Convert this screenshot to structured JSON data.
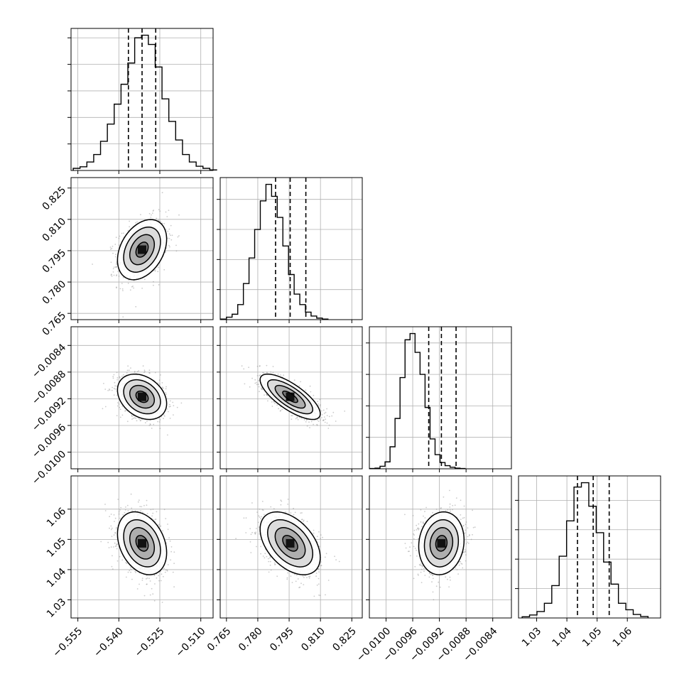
{
  "chart_data": {
    "type": "corner",
    "parameters": [
      {
        "index": 0,
        "axis_range": [
          -0.5575,
          -0.5055
        ],
        "ticks": [
          -0.555,
          -0.54,
          -0.525,
          -0.51
        ],
        "tick_labels": [
          "−0.555",
          "−0.540",
          "−0.525",
          "−0.510"
        ],
        "quantiles": [
          -0.5365,
          -0.5315,
          -0.5265
        ],
        "histogram": {
          "start": -0.5567,
          "bin_width": 0.0025,
          "counts": [
            8,
            14,
            32,
            60,
            110,
            175,
            250,
            325,
            405,
            500,
            510,
            475,
            390,
            270,
            185,
            115,
            60,
            32,
            16,
            8,
            2
          ]
        }
      },
      {
        "index": 1,
        "axis_range": [
          0.762,
          0.83
        ],
        "ticks": [
          0.765,
          0.78,
          0.795,
          0.81,
          0.825
        ],
        "tick_labels": [
          "0.765",
          "0.780",
          "0.795",
          "0.810",
          "0.825"
        ],
        "quantiles": [
          0.7885,
          0.7955,
          0.803
        ],
        "histogram": {
          "start": 0.7623,
          "bin_width": 0.0027,
          "counts": [
            2,
            8,
            18,
            50,
            120,
            205,
            300,
            395,
            450,
            410,
            340,
            245,
            150,
            85,
            50,
            25,
            12,
            5,
            2
          ]
        }
      },
      {
        "index": 2,
        "axis_range": [
          -0.01025,
          -0.00812
        ],
        "ticks": [
          -0.01,
          -0.0096,
          -0.0092,
          -0.0088,
          -0.0084
        ],
        "tick_labels": [
          "−0.0100",
          "−0.0096",
          "−0.0092",
          "−0.0088",
          "−0.0084"
        ],
        "quantiles": [
          -0.00936,
          -0.00917,
          -0.00895
        ],
        "histogram": {
          "start": -0.01024,
          "bin_width": 7.5e-05,
          "counts": [
            1,
            2,
            8,
            22,
            70,
            160,
            290,
            410,
            430,
            370,
            300,
            195,
            95,
            45,
            20,
            10,
            5,
            2,
            1
          ]
        }
      },
      {
        "index": 3,
        "axis_range": [
          1.024,
          1.071
        ],
        "ticks": [
          1.03,
          1.04,
          1.05,
          1.06
        ],
        "tick_labels": [
          "1.03",
          "1.04",
          "1.05",
          "1.06"
        ],
        "quantiles": [
          1.0435,
          1.0487,
          1.054
        ],
        "histogram": {
          "start": 1.0252,
          "bin_width": 0.00245,
          "counts": [
            4,
            10,
            22,
            50,
            110,
            210,
            330,
            445,
            460,
            380,
            290,
            190,
            115,
            50,
            28,
            12,
            5
          ]
        }
      }
    ],
    "pairs": [
      {
        "x": 0,
        "y": 1,
        "center": [
          -0.5315,
          0.7955
        ],
        "sd": [
          0.0045,
          0.0072
        ],
        "corr": 0.35
      },
      {
        "x": 0,
        "y": 2,
        "center": [
          -0.5315,
          -0.00917
        ],
        "sd": [
          0.0045,
          0.00017
        ],
        "corr": -0.3
      },
      {
        "x": 1,
        "y": 2,
        "center": [
          0.7955,
          -0.00917
        ],
        "sd": [
          0.0072,
          0.00017
        ],
        "corr": -0.75
      },
      {
        "x": 0,
        "y": 3,
        "center": [
          -0.5315,
          1.0487
        ],
        "sd": [
          0.0045,
          0.0052
        ],
        "corr": -0.3
      },
      {
        "x": 1,
        "y": 3,
        "center": [
          0.7955,
          1.0487
        ],
        "sd": [
          0.0072,
          0.0052
        ],
        "corr": -0.45
      },
      {
        "x": 2,
        "y": 3,
        "center": [
          -0.00917,
          1.0487
        ],
        "sd": [
          0.00017,
          0.0052
        ],
        "corr": 0.1
      }
    ],
    "contour_levels_sigma": [
      0.5,
      1.0,
      1.5,
      2.0
    ],
    "grid": true,
    "colors": {
      "line": "#000000",
      "grid": "#b0b0b0",
      "points": "#8c8c8c",
      "shade": "#000000"
    }
  }
}
